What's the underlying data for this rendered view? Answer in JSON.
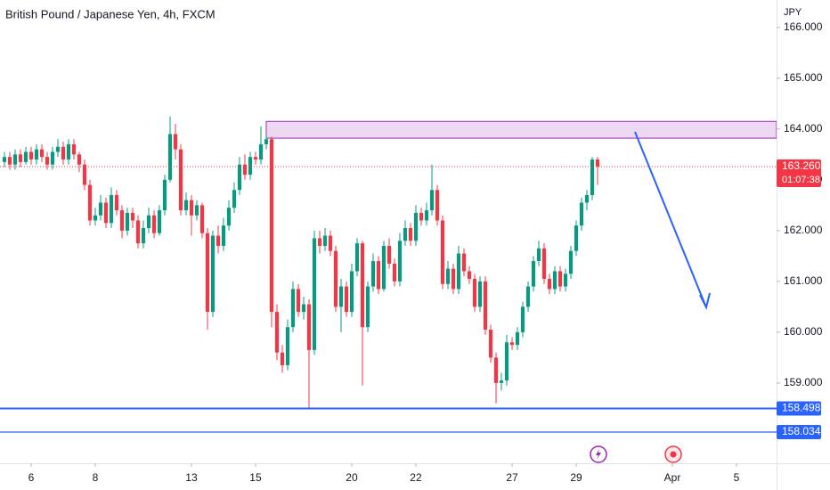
{
  "chart_data": {
    "type": "candlestick",
    "title": "British Pound / Japanese Yen, 4h, FXCM",
    "currency": "JPY",
    "up_color": "#089981",
    "down_color": "#f23645",
    "xlim": [
      -5.83,
      139.5
    ],
    "xticks": [
      {
        "value": 0,
        "label": "6"
      },
      {
        "value": 12,
        "label": "8"
      },
      {
        "value": 30,
        "label": "13"
      },
      {
        "value": 42,
        "label": "15"
      },
      {
        "value": 60,
        "label": "20"
      },
      {
        "value": 72,
        "label": "22"
      },
      {
        "value": 90,
        "label": "27"
      },
      {
        "value": 102,
        "label": "29"
      },
      {
        "value": 120,
        "label": "Apr"
      },
      {
        "value": 132,
        "label": "5"
      }
    ],
    "ylim": [
      157.42,
      166.54
    ],
    "yticks": [
      {
        "value": 159,
        "label": "159.000"
      },
      {
        "value": 160,
        "label": "160.000"
      },
      {
        "value": 161,
        "label": "161.000"
      },
      {
        "value": 162,
        "label": "162.000"
      },
      {
        "value": 163,
        "label": "163.000"
      },
      {
        "value": 164,
        "label": "164.000"
      },
      {
        "value": 165,
        "label": "165.000"
      },
      {
        "value": 166,
        "label": "166.000"
      }
    ],
    "x": [
      -5,
      -4,
      -3,
      -2,
      -1,
      0,
      1,
      2,
      3,
      4,
      5,
      6,
      7,
      8,
      9,
      10,
      11,
      12,
      13,
      14,
      15,
      16,
      17,
      18,
      19,
      20,
      21,
      22,
      23,
      24,
      25,
      26,
      27,
      28,
      29,
      30,
      31,
      32,
      33,
      34,
      35,
      36,
      37,
      38,
      39,
      40,
      41,
      42,
      43,
      44,
      45,
      46,
      47,
      48,
      49,
      50,
      51,
      52,
      53,
      54,
      55,
      56,
      57,
      58,
      59,
      60,
      61,
      62,
      63,
      64,
      65,
      66,
      67,
      68,
      69,
      70,
      71,
      72,
      73,
      74,
      75,
      76,
      77,
      78,
      79,
      80,
      81,
      82,
      83,
      84,
      85,
      86,
      87,
      88,
      89,
      90,
      91,
      92,
      93,
      94,
      95,
      96,
      97,
      98,
      99,
      100,
      101,
      102,
      103,
      104,
      105,
      106
    ],
    "open": [
      163.35,
      163.45,
      163.3,
      163.5,
      163.35,
      163.55,
      163.4,
      163.6,
      163.45,
      163.3,
      163.55,
      163.65,
      163.4,
      163.7,
      163.5,
      163.3,
      162.9,
      162.2,
      162.3,
      162.55,
      162.15,
      162.7,
      162.4,
      162.0,
      162.35,
      162.2,
      161.75,
      162.05,
      162.3,
      161.95,
      162.4,
      163.0,
      163.9,
      163.6,
      162.4,
      162.6,
      162.3,
      162.5,
      161.95,
      160.4,
      161.9,
      161.7,
      162.1,
      162.45,
      162.8,
      163.3,
      163.1,
      163.45,
      163.4,
      163.7,
      163.8,
      160.4,
      159.6,
      159.35,
      160.1,
      160.85,
      160.4,
      160.55,
      159.65,
      161.85,
      161.7,
      161.9,
      161.6,
      160.5,
      160.9,
      160.4,
      161.2,
      161.75,
      160.1,
      160.9,
      161.4,
      160.85,
      161.7,
      161.35,
      161.0,
      161.8,
      162.05,
      161.8,
      162.35,
      162.2,
      162.4,
      162.8,
      162.2,
      160.95,
      161.25,
      160.85,
      161.55,
      161.2,
      161.05,
      160.5,
      161.0,
      160.05,
      159.5,
      159.0,
      159.05,
      159.8,
      159.75,
      160.0,
      160.5,
      160.9,
      161.4,
      161.65,
      161.05,
      160.85,
      161.2,
      160.9,
      161.15,
      161.6,
      162.1,
      162.55,
      162.7,
      163.4
    ],
    "high": [
      163.55,
      163.55,
      163.6,
      163.6,
      163.65,
      163.65,
      163.7,
      163.7,
      163.55,
      163.65,
      163.8,
      163.75,
      163.8,
      163.8,
      163.55,
      163.4,
      163.0,
      162.45,
      162.7,
      162.65,
      162.85,
      162.8,
      162.5,
      162.45,
      162.45,
      162.3,
      162.2,
      162.45,
      162.4,
      162.5,
      163.1,
      164.25,
      164.1,
      163.7,
      162.75,
      162.7,
      162.6,
      162.55,
      162.05,
      162.0,
      162.1,
      162.25,
      162.6,
      162.95,
      163.45,
      163.5,
      163.55,
      163.55,
      164.05,
      163.9,
      163.85,
      160.55,
      159.75,
      160.25,
      161.0,
      160.95,
      160.7,
      160.65,
      162.0,
      162.0,
      162.05,
      162.0,
      161.7,
      161.05,
      161.0,
      161.35,
      161.85,
      161.8,
      161.0,
      161.55,
      161.5,
      161.8,
      161.85,
      161.45,
      161.95,
      162.2,
      162.15,
      162.5,
      162.45,
      162.55,
      163.3,
      162.9,
      162.3,
      161.4,
      161.35,
      161.7,
      161.65,
      161.3,
      161.15,
      161.1,
      161.1,
      160.15,
      159.6,
      159.2,
      159.95,
      159.9,
      160.1,
      160.6,
      161.0,
      161.5,
      161.8,
      161.75,
      161.15,
      161.3,
      161.3,
      161.25,
      161.7,
      162.2,
      162.65,
      162.8,
      163.45,
      163.45
    ],
    "low": [
      163.25,
      163.2,
      163.2,
      163.25,
      163.3,
      163.3,
      163.3,
      163.35,
      163.2,
      163.2,
      163.45,
      163.3,
      163.3,
      163.4,
      163.15,
      162.8,
      162.1,
      162.1,
      162.2,
      162.05,
      162.05,
      162.3,
      161.85,
      161.9,
      162.05,
      161.65,
      161.65,
      161.95,
      161.85,
      161.9,
      162.3,
      162.95,
      163.4,
      162.3,
      162.3,
      161.9,
      162.2,
      161.85,
      160.05,
      160.3,
      161.55,
      161.6,
      162.0,
      162.35,
      162.7,
      163.0,
      163.0,
      163.3,
      163.3,
      163.6,
      160.1,
      159.45,
      159.2,
      159.25,
      160.0,
      160.3,
      160.25,
      158.5,
      159.55,
      161.55,
      161.6,
      161.5,
      160.4,
      160.0,
      160.3,
      160.3,
      161.1,
      158.95,
      160.0,
      160.8,
      160.75,
      160.8,
      161.25,
      160.9,
      160.9,
      161.7,
      161.7,
      161.7,
      162.1,
      162.1,
      162.3,
      162.1,
      160.85,
      160.85,
      160.75,
      160.75,
      161.1,
      160.95,
      160.4,
      160.4,
      159.95,
      159.4,
      158.6,
      158.85,
      158.95,
      159.65,
      159.65,
      159.9,
      160.4,
      160.8,
      161.3,
      160.95,
      160.75,
      160.75,
      160.8,
      160.8,
      161.05,
      161.5,
      162.0,
      162.4,
      162.6,
      162.9
    ],
    "close": [
      163.45,
      163.3,
      163.5,
      163.35,
      163.55,
      163.4,
      163.6,
      163.45,
      163.3,
      163.55,
      163.65,
      163.4,
      163.7,
      163.5,
      163.3,
      162.9,
      162.2,
      162.3,
      162.55,
      162.15,
      162.7,
      162.4,
      162.0,
      162.35,
      162.2,
      161.75,
      162.05,
      162.3,
      161.95,
      162.4,
      163.0,
      163.9,
      163.6,
      162.4,
      162.6,
      162.3,
      162.5,
      161.95,
      160.4,
      161.9,
      161.7,
      162.1,
      162.45,
      162.8,
      163.3,
      163.1,
      163.45,
      163.4,
      163.7,
      163.8,
      160.4,
      159.6,
      159.35,
      160.1,
      160.85,
      160.4,
      160.55,
      159.65,
      161.85,
      161.7,
      161.9,
      161.6,
      160.5,
      160.9,
      160.4,
      161.2,
      161.75,
      160.1,
      160.9,
      161.4,
      160.85,
      161.7,
      161.35,
      161.0,
      161.8,
      162.05,
      161.8,
      162.35,
      162.2,
      162.4,
      162.8,
      162.2,
      160.95,
      161.25,
      160.85,
      161.55,
      161.2,
      161.05,
      160.5,
      161.0,
      160.05,
      159.5,
      159.0,
      159.05,
      159.8,
      159.75,
      160.0,
      160.5,
      160.9,
      161.4,
      161.65,
      161.05,
      160.85,
      161.2,
      160.9,
      161.15,
      161.6,
      162.1,
      162.55,
      162.7,
      163.4,
      163.26
    ],
    "last_price": {
      "value": 163.26,
      "label": "163.260",
      "countdown": "01:07:38",
      "color": "#f23645"
    },
    "levels": [
      {
        "value": 158.498,
        "label": "158.498",
        "color": "#2962ff"
      },
      {
        "value": 158.034,
        "label": "158.034",
        "color": "#2962ff"
      }
    ],
    "zone": {
      "x_start": 44,
      "low": 163.82,
      "high": 164.15,
      "color": "#9c27b0"
    }
  }
}
